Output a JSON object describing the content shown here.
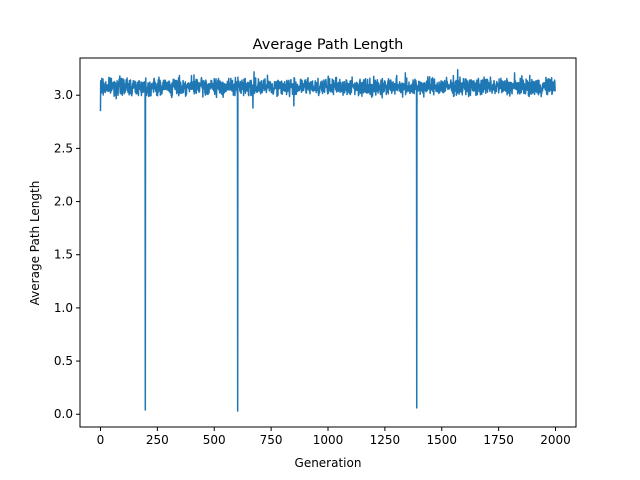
{
  "chart_data": {
    "type": "line",
    "title": "Average Path Length",
    "xlabel": "Generation",
    "ylabel": "Average Path Length",
    "xlim": [
      -90,
      2090
    ],
    "ylim": [
      -0.12,
      3.35
    ],
    "xticks": [
      0,
      250,
      500,
      750,
      1000,
      1250,
      1500,
      1750,
      2000
    ],
    "xtick_labels": [
      "0",
      "250",
      "500",
      "750",
      "1000",
      "1250",
      "1500",
      "1750",
      "2000"
    ],
    "yticks": [
      0.0,
      0.5,
      1.0,
      1.5,
      2.0,
      2.5,
      3.0
    ],
    "ytick_labels": [
      "0.0",
      "0.5",
      "1.0",
      "1.5",
      "2.0",
      "2.5",
      "3.0"
    ],
    "grid": false,
    "series": [
      {
        "color": "#1f77b4",
        "baseline": 3.08,
        "noise_amplitude": 0.08,
        "generation_range": [
          0,
          1999
        ],
        "start_value": 2.85,
        "dips": [
          {
            "x": 197,
            "y": 0.04
          },
          {
            "x": 603,
            "y": 0.03
          },
          {
            "x": 1390,
            "y": 0.06
          }
        ],
        "peaks": [
          {
            "x": 675,
            "y": 3.22
          },
          {
            "x": 1570,
            "y": 3.24
          },
          {
            "x": 1340,
            "y": 3.21
          },
          {
            "x": 1820,
            "y": 3.21
          }
        ],
        "troughs": [
          {
            "x": 670,
            "y": 2.88
          },
          {
            "x": 850,
            "y": 2.9
          }
        ]
      }
    ]
  }
}
